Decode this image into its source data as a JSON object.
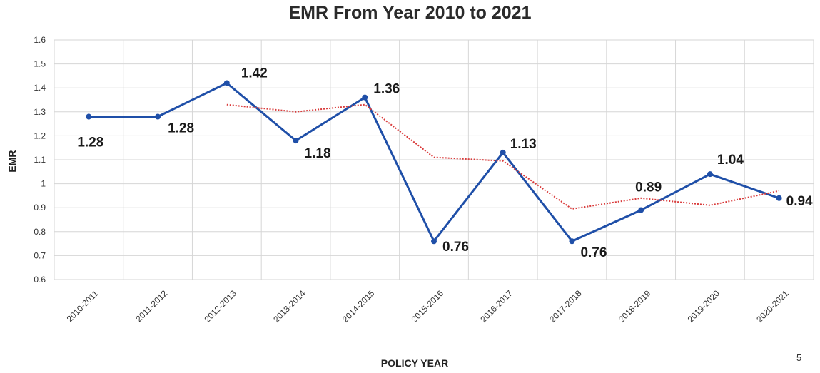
{
  "page_number": "5",
  "chart_data": {
    "type": "line",
    "title": "EMR From Year 2010 to 2021",
    "xlabel": "POLICY YEAR",
    "ylabel": "EMR",
    "categories": [
      "2010-2011",
      "2011-2012",
      "2012-2013",
      "2013-2014",
      "2014-2015",
      "2015-2016",
      "2016-2017",
      "2017-2018",
      "2018-2019",
      "2019-2020",
      "2020-2021"
    ],
    "ylim": [
      0.6,
      1.6
    ],
    "yticks": [
      "0.6",
      "0.7",
      "0.8",
      "0.9",
      "1",
      "1.1",
      "1.2",
      "1.3",
      "1.4",
      "1.5",
      "1.6"
    ],
    "grid": true,
    "series": [
      {
        "values": [
          1.28,
          1.28,
          1.42,
          1.18,
          1.36,
          0.76,
          1.13,
          0.76,
          0.89,
          1.04,
          0.94
        ],
        "data_labels": [
          "1.28",
          "1.28",
          "1.42",
          "1.18",
          "1.36",
          "0.76",
          "1.13",
          "0.76",
          "0.89",
          "1.04",
          "0.94"
        ],
        "color": "#1f4fa8",
        "style": "solid",
        "markers": true
      },
      {
        "values": [
          null,
          null,
          1.33,
          1.3,
          1.33,
          1.11,
          1.095,
          0.895,
          0.94,
          0.91,
          0.97
        ],
        "color": "#d93a3a",
        "style": "dotted",
        "markers": false
      }
    ]
  }
}
